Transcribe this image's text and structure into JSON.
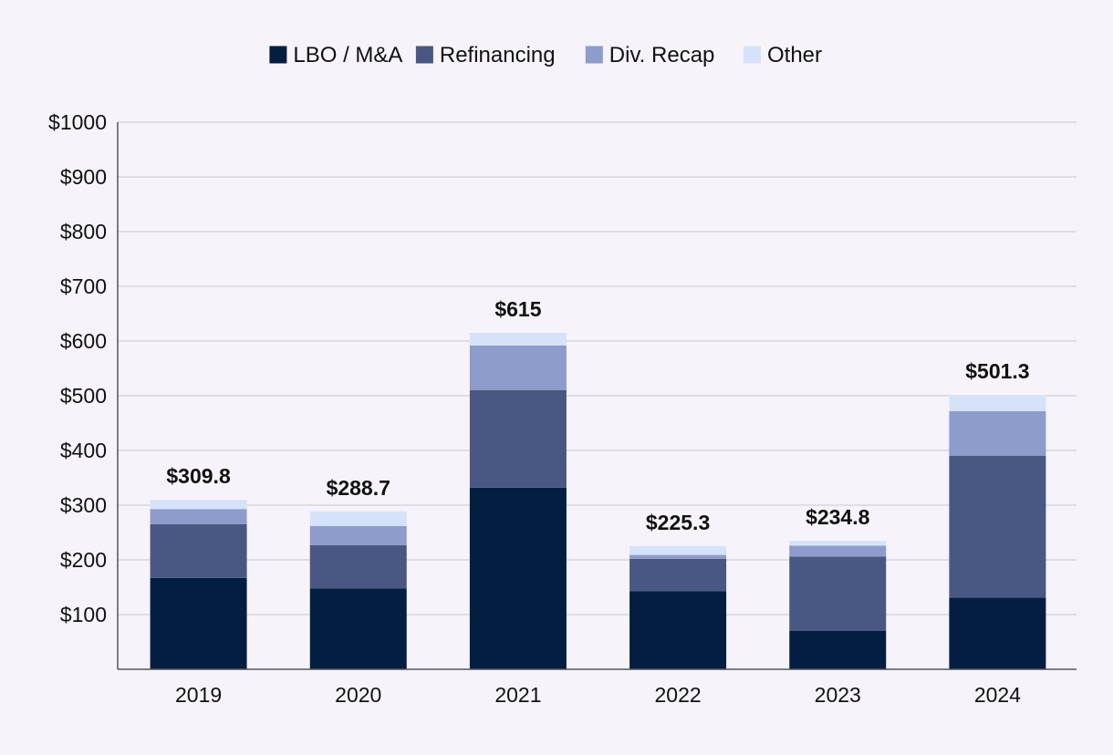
{
  "chart_data": {
    "type": "bar",
    "stacked": true,
    "title": "",
    "xlabel": "",
    "ylabel": "",
    "ylim": [
      0,
      1000
    ],
    "yticks": [
      100,
      200,
      300,
      400,
      500,
      600,
      700,
      800,
      900,
      1000
    ],
    "ytick_labels": [
      "$100",
      "$200",
      "$300",
      "$400",
      "$500",
      "$600",
      "$700",
      "$800",
      "$900",
      "$1000"
    ],
    "grid": true,
    "legend_position": "top-center",
    "categories": [
      "2019",
      "2020",
      "2021",
      "2022",
      "2023",
      "2024"
    ],
    "series": [
      {
        "name": "LBO / M&A",
        "color": "#041e42",
        "values": [
          167,
          148,
          332,
          143,
          70,
          131
        ]
      },
      {
        "name": "Refinancing",
        "color": "#485882",
        "values": [
          98,
          79,
          178,
          59,
          136,
          259
        ]
      },
      {
        "name": "Div. Recap",
        "color": "#8e9ccb",
        "values": [
          28,
          35,
          82,
          7,
          20,
          82
        ]
      },
      {
        "name": "Other",
        "color": "#d5e3fa",
        "values": [
          16.8,
          26.7,
          23,
          16.3,
          8.8,
          29.3
        ]
      }
    ],
    "totals": [
      309.8,
      288.7,
      615,
      225.3,
      234.8,
      501.3
    ],
    "total_labels": [
      "$309.8",
      "$288.7",
      "$615",
      "$225.3",
      "$234.8",
      "$501.3"
    ]
  }
}
